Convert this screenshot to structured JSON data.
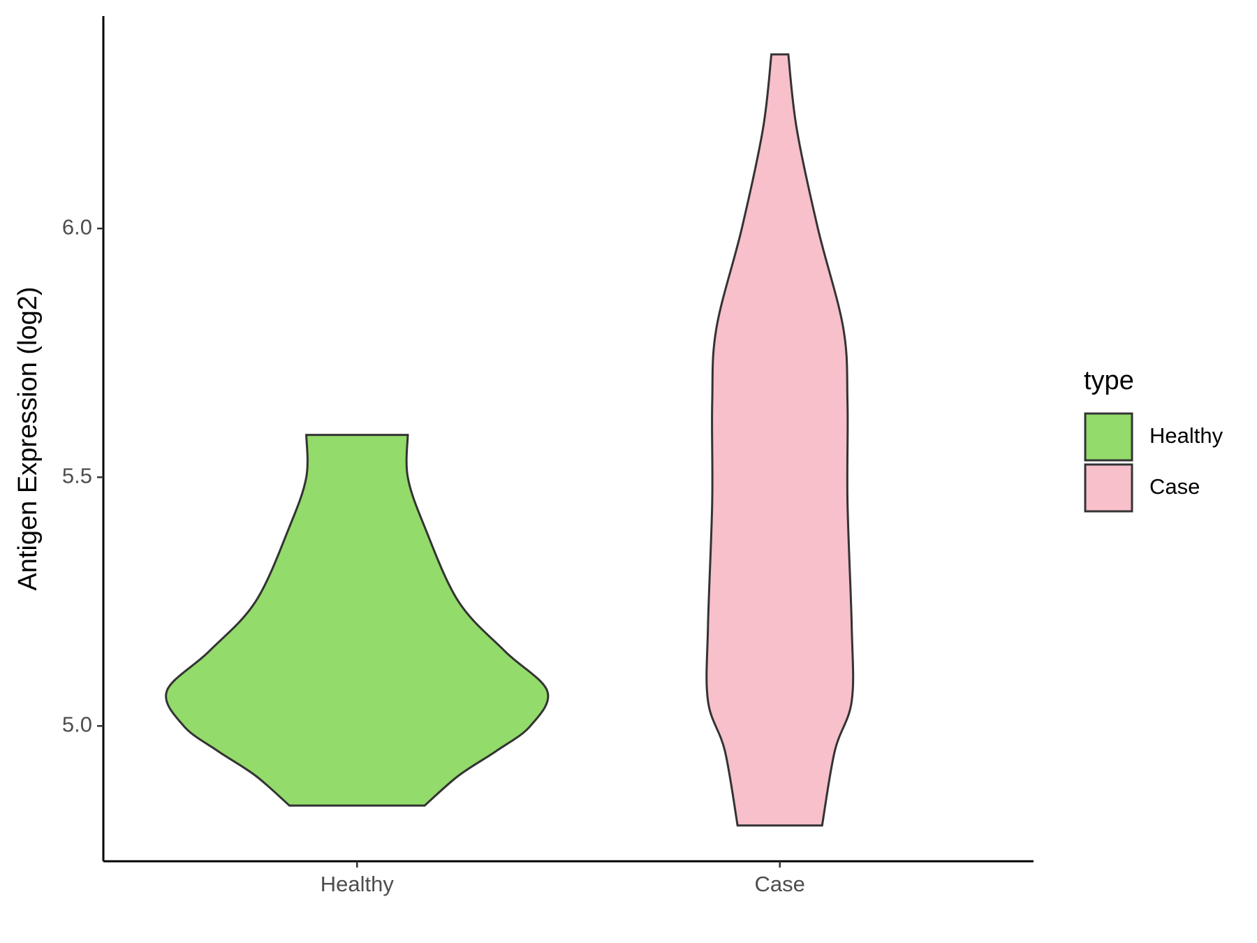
{
  "chart_data": {
    "type": "violin",
    "y_label": "Antigen Expression (log2)",
    "categories": [
      "Healthy",
      "Case"
    ],
    "series": [
      {
        "name": "Healthy",
        "color": "#93db6a",
        "y": [
          4.84,
          4.9,
          4.95,
          5.0,
          5.07,
          5.15,
          5.25,
          5.4,
          5.5,
          5.585
        ],
        "half_width": [
          0.16,
          0.24,
          0.33,
          0.41,
          0.45,
          0.35,
          0.24,
          0.16,
          0.12,
          0.12
        ]
      },
      {
        "name": "Case",
        "color": "#f7c0cb",
        "y": [
          4.8,
          4.95,
          5.05,
          5.2,
          5.45,
          5.65,
          5.8,
          6.0,
          6.2,
          6.35
        ],
        "half_width": [
          0.1,
          0.13,
          0.17,
          0.17,
          0.16,
          0.16,
          0.15,
          0.09,
          0.04,
          0.02
        ]
      }
    ],
    "ylim": [
      4.728,
      6.427
    ],
    "yticks": [
      {
        "value": 5.0,
        "label": "5.0"
      },
      5.5,
      {
        "value": 6.0,
        "label": "6.0"
      }
    ],
    "legend_title": "type",
    "legend_position": "right"
  }
}
